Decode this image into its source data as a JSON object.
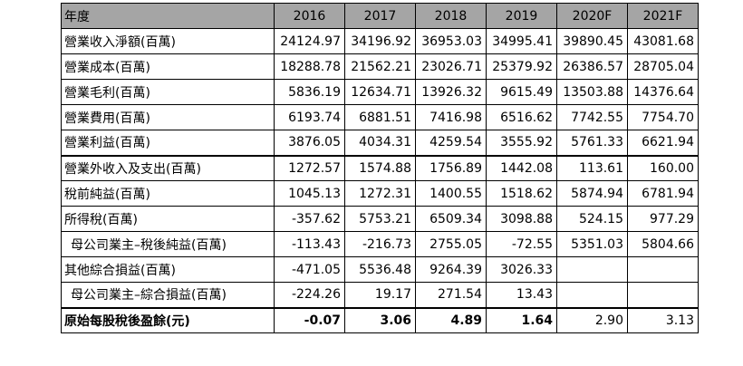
{
  "table": {
    "header": [
      "年度",
      "2016",
      "2017",
      "2018",
      "2019",
      "2020F",
      "2021F"
    ],
    "rows": [
      {
        "label": "營業收入淨額(百萬)",
        "values": [
          "24124.97",
          "34196.92",
          "36953.03",
          "34995.41",
          "39890.45",
          "43081.68"
        ]
      },
      {
        "label": "營業成本(百萬)",
        "values": [
          "18288.78",
          "21562.21",
          "23026.71",
          "25379.92",
          "26386.57",
          "28705.04"
        ]
      },
      {
        "label": "營業毛利(百萬)",
        "values": [
          "5836.19",
          "12634.71",
          "13926.32",
          "9615.49",
          "13503.88",
          "14376.64"
        ]
      },
      {
        "label": "營業費用(百萬)",
        "values": [
          "6193.74",
          "6881.51",
          "7416.98",
          "6516.62",
          "7742.55",
          "7754.70"
        ]
      },
      {
        "label": "營業利益(百萬)",
        "values": [
          "3876.05",
          "4034.31",
          "4259.54",
          "3555.92",
          "5761.33",
          "6621.94"
        ]
      },
      {
        "label": "營業外收入及支出(百萬)",
        "values": [
          "1272.57",
          "1574.88",
          "1756.89",
          "1442.08",
          "113.61",
          "160.00"
        ]
      },
      {
        "label": "稅前純益(百萬)",
        "values": [
          "1045.13",
          "1272.31",
          "1400.55",
          "1518.62",
          "5874.94",
          "6781.94"
        ]
      },
      {
        "label": "所得稅(百萬)",
        "values": [
          "-357.62",
          "5753.21",
          "6509.34",
          "3098.88",
          "524.15",
          "977.29"
        ]
      },
      {
        "label": "母公司業主–稅後純益(百萬)",
        "values": [
          "-113.43",
          "-216.73",
          "2755.05",
          "-72.55",
          "5351.03",
          "5804.66"
        ]
      },
      {
        "label": "其他綜合損益(百萬)",
        "values": [
          "-471.05",
          "5536.48",
          "9264.39",
          "3026.33",
          "",
          ""
        ]
      },
      {
        "label": "母公司業主–綜合損益(百萬)",
        "values": [
          "-224.26",
          "19.17",
          "271.54",
          "13.43",
          "",
          ""
        ]
      },
      {
        "label": "原始每股稅後盈餘(元)",
        "values": [
          "-0.07",
          "3.06",
          "4.89",
          "1.64",
          "2.90",
          "3.13"
        ]
      }
    ]
  }
}
